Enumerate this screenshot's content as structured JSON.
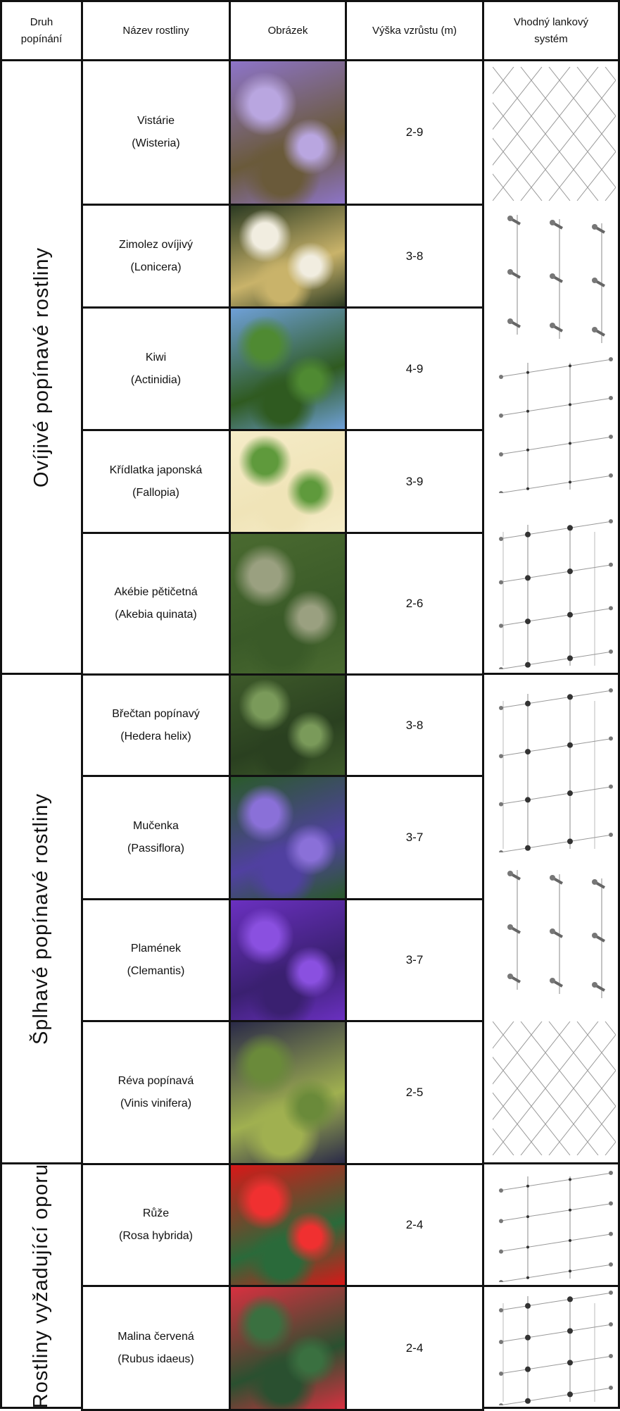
{
  "headers": {
    "type": "Druh popínání",
    "name": "Název rostliny",
    "image": "Obrázek",
    "height": "Výška vzrůstu (m)",
    "system": "Vhodný lankový systém"
  },
  "groups": [
    {
      "label": "Ovíjivé popínavé rostliny"
    },
    {
      "label": "Šplhavé popínavé rostliny"
    },
    {
      "label": "Rostliny vyžadující oporu"
    }
  ],
  "rows": [
    {
      "name": "Vistárie",
      "latin": "(Wisteria)",
      "height": "2-9",
      "photo": "wisteria-photo",
      "colors": [
        "#8d74c8",
        "#b9a6e0",
        "#6a5a3a"
      ]
    },
    {
      "name": "Zimolez ovíjivý",
      "latin": "(Lonicera)",
      "height": "3-8",
      "photo": "honeysuckle-photo",
      "colors": [
        "#2b3a22",
        "#f1ede0",
        "#c9b36a"
      ]
    },
    {
      "name": "Kiwi",
      "latin": "(Actinidia)",
      "height": "4-9",
      "photo": "kiwi-photo",
      "colors": [
        "#6fa0d8",
        "#4f8a32",
        "#2f5a20"
      ]
    },
    {
      "name": "Křídlatka japonská",
      "latin": "(Fallopia)",
      "height": "3-9",
      "photo": "fallopia-illustration",
      "colors": [
        "#f5ecc8",
        "#5f9a3c",
        "#f0e4b8"
      ]
    },
    {
      "name": "Akébie pětičetná",
      "latin": "(Akebia quinata)",
      "height": "2-6",
      "photo": "akebia-photo",
      "colors": [
        "#4a6a30",
        "#9aa080",
        "#3a5a28"
      ]
    },
    {
      "name": "Břečtan popínavý",
      "latin": "(Hedera helix)",
      "height": "3-8",
      "photo": "ivy-photo",
      "colors": [
        "#3e5a2a",
        "#7a9a5a",
        "#2a4020"
      ]
    },
    {
      "name": "Mučenka",
      "latin": "(Passiflora)",
      "height": "3-7",
      "photo": "passiflora-photo",
      "colors": [
        "#2a5a2a",
        "#8a70d8",
        "#5040a0"
      ]
    },
    {
      "name": "Plamének",
      "latin": "(Clemantis)",
      "height": "3-7",
      "photo": "clematis-photo",
      "colors": [
        "#6a30c0",
        "#8a50e0",
        "#3a2070"
      ]
    },
    {
      "name": "Réva popínavá",
      "latin": "(Vinis vinifera)",
      "height": "2-5",
      "photo": "grapes-photo",
      "colors": [
        "#2a2a48",
        "#6a8a3a",
        "#a0b050"
      ]
    },
    {
      "name": "Růže",
      "latin": "(Rosa hybrida)",
      "height": "2-4",
      "photo": "rose-photo",
      "colors": [
        "#d81818",
        "#f03030",
        "#2a6a3a"
      ]
    },
    {
      "name": "Malina červená",
      "latin": "(Rubus idaeus)",
      "height": "2-4",
      "photo": "raspberry-photo",
      "colors": [
        "#d83040",
        "#3a7040",
        "#2a5030"
      ]
    }
  ],
  "systems": [
    "diagonal-mesh",
    "vertical-rods",
    "grid-rods",
    "grid-rods-dots",
    "grid-rods-dots",
    "vertical-rods",
    "diagonal-mesh",
    "grid-rods",
    "grid-rods-dots"
  ]
}
